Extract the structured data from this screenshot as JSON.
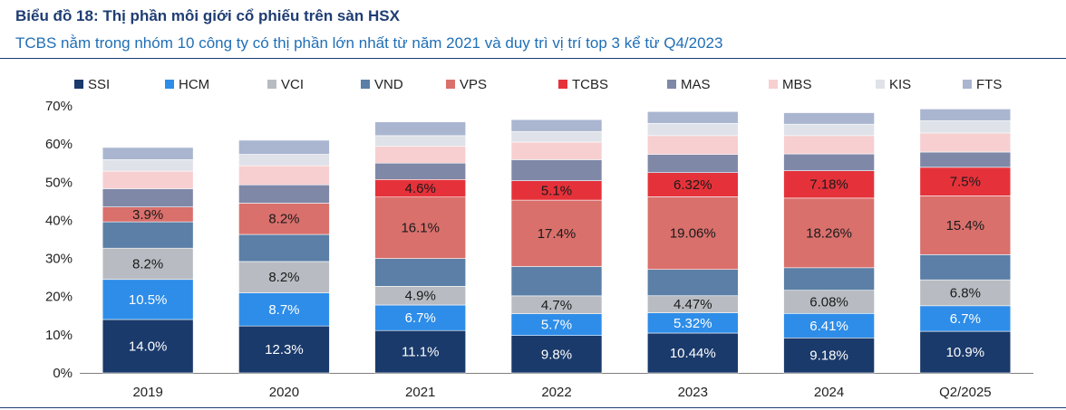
{
  "header": {
    "title": "Biểu đồ 18: Thị phần môi giới cổ phiếu trên sàn HSX",
    "subtitle": "TCBS nằm trong nhóm 10 công ty có thị phần lớn nhất từ năm 2021 và duy trì vị trí top 3 kể từ Q4/2023"
  },
  "chart_data": {
    "type": "bar",
    "stacked": true,
    "categories": [
      "2019",
      "2020",
      "2021",
      "2022",
      "2023",
      "2024",
      "Q2/2025"
    ],
    "ylim": [
      0,
      70
    ],
    "yticks": [
      "0%",
      "10%",
      "20%",
      "30%",
      "40%",
      "50%",
      "60%",
      "70%"
    ],
    "legend_position": "top",
    "series": [
      {
        "name": "SSI",
        "color": "#1a3a6b",
        "values": [
          14.0,
          12.3,
          11.1,
          9.8,
          10.44,
          9.18,
          10.9
        ],
        "labels": [
          "14.0%",
          "12.3%",
          "11.1%",
          "9.8%",
          "10.44%",
          "9.18%",
          "10.9%"
        ]
      },
      {
        "name": "HCM",
        "color": "#2e8de8",
        "values": [
          10.5,
          8.7,
          6.7,
          5.7,
          5.32,
          6.41,
          6.7
        ],
        "labels": [
          "10.5%",
          "8.7%",
          "6.7%",
          "5.7%",
          "5.32%",
          "6.41%",
          "6.7%"
        ]
      },
      {
        "name": "VCI",
        "color": "#b8bcc2",
        "values": [
          8.2,
          8.2,
          4.9,
          4.7,
          4.47,
          6.08,
          6.8
        ],
        "labels": [
          "8.2%",
          "8.2%",
          "4.9%",
          "4.7%",
          "4.47%",
          "6.08%",
          "6.8%"
        ]
      },
      {
        "name": "VND",
        "color": "#5b7fa6",
        "values": [
          6.9,
          7.1,
          7.3,
          7.7,
          6.9,
          5.9,
          6.6
        ],
        "labels": []
      },
      {
        "name": "VPS",
        "color": "#d9706c",
        "values": [
          3.9,
          8.2,
          16.1,
          17.4,
          19.06,
          18.26,
          15.4
        ],
        "labels": [
          "3.9%",
          "8.2%",
          "16.1%",
          "17.4%",
          "19.06%",
          "18.26%",
          "15.4%"
        ]
      },
      {
        "name": "TCBS",
        "color": "#e5323a",
        "values": [
          0,
          0,
          4.6,
          5.1,
          6.32,
          7.18,
          7.5
        ],
        "labels": [
          "",
          "",
          "4.6%",
          "5.1%",
          "6.32%",
          "7.18%",
          "7.5%"
        ]
      },
      {
        "name": "MAS",
        "color": "#8088a8",
        "values": [
          4.8,
          4.8,
          4.3,
          5.5,
          4.8,
          4.4,
          4.0
        ],
        "labels": []
      },
      {
        "name": "MBS",
        "color": "#f7cfd0",
        "values": [
          4.6,
          5.0,
          4.4,
          4.6,
          4.9,
          4.8,
          5.0
        ],
        "labels": []
      },
      {
        "name": "KIS",
        "color": "#dfe2e8",
        "values": [
          3.0,
          3.0,
          2.8,
          2.8,
          3.2,
          3.0,
          3.2
        ],
        "labels": []
      },
      {
        "name": "FTS",
        "color": "#aab6d0",
        "values": [
          3.2,
          3.7,
          3.6,
          3.1,
          3.1,
          3.0,
          3.1
        ],
        "labels": []
      }
    ]
  }
}
